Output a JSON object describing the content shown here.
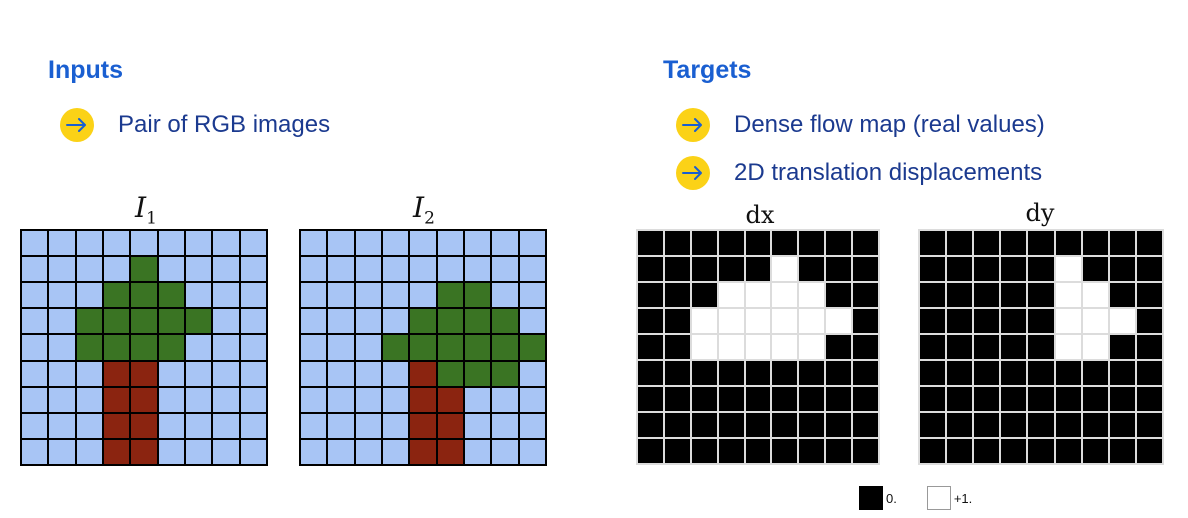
{
  "inputs": {
    "heading": "Inputs",
    "bullets": [
      {
        "text": "Pair of RGB images"
      }
    ]
  },
  "targets": {
    "heading": "Targets",
    "bullets": [
      {
        "text": "Dense flow map (real values)"
      },
      {
        "text": "2D translation displacements"
      }
    ]
  },
  "colors": {
    "heading": "#1a5fd1",
    "bullet_fill": "#fbd217",
    "bullet_arrow": "#1a5fd1",
    "sky": "#a8c5f5",
    "leaf": "#3a7423",
    "trunk": "#8b2410",
    "black": "#000000",
    "white": "#ffffff"
  },
  "icons": {
    "bullet": "arrow-right-icon"
  },
  "images": [
    {
      "label_main": "I",
      "label_sub": "1",
      "palette": {
        "S": "#a8c5f5",
        "L": "#3a7423",
        "T": "#8b2410"
      },
      "rows": [
        "SSSSSSSSS",
        "SSSSLSSSS",
        "SSSLLLSSS",
        "SSLLLLLSS",
        "SSLLLLSSS",
        "SSSTTSSSS",
        "SSSTTSSSS",
        "SSSTTSSSS",
        "SSSTTSSSS"
      ]
    },
    {
      "label_main": "I",
      "label_sub": "2",
      "palette": {
        "S": "#a8c5f5",
        "L": "#3a7423",
        "T": "#8b2410"
      },
      "rows": [
        "SSSSSSSSS",
        "SSSSSSSSS",
        "SSSSSLLSS",
        "SSSSLLLLS",
        "SSSLLLLLL",
        "SSSSTLLLS",
        "SSSSTTSSS",
        "SSSSTTSSS",
        "SSSSTTSSS"
      ]
    }
  ],
  "flows": [
    {
      "label": "dx",
      "palette": {
        "0": "#000000",
        "1": "#ffffff"
      },
      "rows": [
        "000000000",
        "000001000",
        "000111100",
        "001111110",
        "001111100",
        "000000000",
        "000000000",
        "000000000",
        "000000000"
      ]
    },
    {
      "label": "dy",
      "palette": {
        "0": "#000000",
        "1": "#ffffff"
      },
      "rows": [
        "000000000",
        "000001000",
        "000001100",
        "000001110",
        "000001100",
        "000000000",
        "000000000",
        "000000000",
        "000000000"
      ]
    }
  ],
  "legend": [
    {
      "text": "0.",
      "color": "#000000"
    },
    {
      "text": "+1.",
      "color": "#ffffff"
    }
  ]
}
